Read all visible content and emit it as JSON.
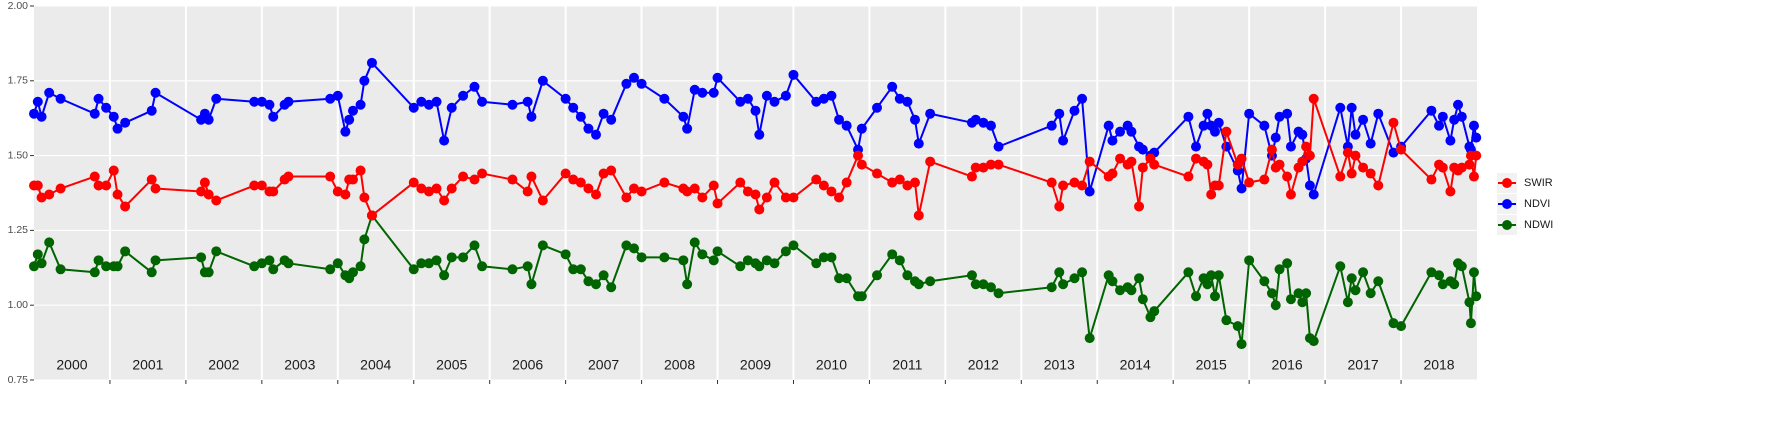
{
  "chart_data": {
    "type": "line",
    "xlim": [
      2000,
      2019
    ],
    "xticks": [
      2001,
      2002,
      2003,
      2004,
      2005,
      2006,
      2007,
      2008,
      2009,
      2010,
      2011,
      2012,
      2013,
      2014,
      2015,
      2016,
      2017,
      2018
    ],
    "year_labels": [
      "2000",
      "2001",
      "2002",
      "2003",
      "2004",
      "2005",
      "2006",
      "2007",
      "2008",
      "2009",
      "2010",
      "2011",
      "2012",
      "2013",
      "2014",
      "2015",
      "2016",
      "2017",
      "2018"
    ],
    "ylim": [
      0.75,
      2.0
    ],
    "yticks": [
      {
        "value": 0.75,
        "label": "0.75"
      },
      {
        "value": 1.0,
        "label": "1.00"
      },
      {
        "value": 1.25,
        "label": "1.25"
      },
      {
        "value": 1.5,
        "label": "1.50"
      },
      {
        "value": 1.75,
        "label": "1.75"
      },
      {
        "value": 2.0,
        "label": "2.00"
      }
    ],
    "grid": true,
    "legend": "right",
    "x": [
      2000.0,
      2000.05,
      2000.1,
      2000.2,
      2000.35,
      2000.8,
      2000.85,
      2000.95,
      2001.05,
      2001.1,
      2001.2,
      2001.55,
      2001.6,
      2002.2,
      2002.25,
      2002.3,
      2002.4,
      2002.9,
      2003.0,
      2003.1,
      2003.15,
      2003.3,
      2003.35,
      2003.9,
      2004.0,
      2004.1,
      2004.15,
      2004.2,
      2004.3,
      2004.35,
      2004.45,
      2005.0,
      2005.1,
      2005.2,
      2005.3,
      2005.4,
      2005.5,
      2005.65,
      2005.8,
      2005.9,
      2006.3,
      2006.5,
      2006.55,
      2006.7,
      2007.0,
      2007.1,
      2007.2,
      2007.3,
      2007.4,
      2007.5,
      2007.6,
      2007.8,
      2007.9,
      2008.0,
      2008.3,
      2008.55,
      2008.6,
      2008.7,
      2008.8,
      2008.95,
      2009.0,
      2009.3,
      2009.4,
      2009.5,
      2009.55,
      2009.65,
      2009.75,
      2009.9,
      2010.0,
      2010.3,
      2010.4,
      2010.5,
      2010.6,
      2010.7,
      2010.85,
      2010.9,
      2011.1,
      2011.3,
      2011.4,
      2011.5,
      2011.6,
      2011.65,
      2011.8,
      2012.35,
      2012.4,
      2012.5,
      2012.6,
      2012.7,
      2013.4,
      2013.5,
      2013.55,
      2013.7,
      2013.8,
      2013.9,
      2014.15,
      2014.2,
      2014.3,
      2014.4,
      2014.45,
      2014.55,
      2014.6,
      2014.7,
      2014.75,
      2015.2,
      2015.3,
      2015.4,
      2015.45,
      2015.5,
      2015.55,
      2015.6,
      2015.7,
      2015.85,
      2015.9,
      2016.0,
      2016.2,
      2016.3,
      2016.35,
      2016.4,
      2016.5,
      2016.55,
      2016.65,
      2016.7,
      2016.75,
      2016.8,
      2016.85,
      2017.2,
      2017.3,
      2017.35,
      2017.4,
      2017.5,
      2017.6,
      2017.7,
      2017.9,
      2018.0,
      2018.4,
      2018.5,
      2018.55,
      2018.65,
      2018.7,
      2018.75,
      2018.8,
      2018.9,
      2018.92,
      2018.96,
      2018.99
    ],
    "series": [
      {
        "name": "SWIR",
        "color": "#ff0000",
        "values": [
          1.4,
          1.4,
          1.36,
          1.37,
          1.39,
          1.43,
          1.4,
          1.4,
          1.45,
          1.37,
          1.33,
          1.42,
          1.39,
          1.38,
          1.41,
          1.37,
          1.35,
          1.4,
          1.4,
          1.38,
          1.38,
          1.42,
          1.43,
          1.43,
          1.38,
          1.37,
          1.42,
          1.42,
          1.45,
          1.36,
          1.3,
          1.41,
          1.39,
          1.38,
          1.39,
          1.35,
          1.39,
          1.43,
          1.42,
          1.44,
          1.42,
          1.38,
          1.43,
          1.35,
          1.44,
          1.42,
          1.41,
          1.39,
          1.37,
          1.44,
          1.45,
          1.36,
          1.39,
          1.38,
          1.41,
          1.39,
          1.38,
          1.39,
          1.36,
          1.4,
          1.34,
          1.41,
          1.38,
          1.37,
          1.32,
          1.36,
          1.41,
          1.36,
          1.36,
          1.42,
          1.4,
          1.38,
          1.36,
          1.41,
          1.5,
          1.47,
          1.44,
          1.41,
          1.42,
          1.4,
          1.41,
          1.3,
          1.48,
          1.43,
          1.46,
          1.46,
          1.47,
          1.47,
          1.41,
          1.33,
          1.4,
          1.41,
          1.4,
          1.48,
          1.43,
          1.44,
          1.49,
          1.47,
          1.48,
          1.33,
          1.46,
          1.49,
          1.47,
          1.43,
          1.49,
          1.48,
          1.47,
          1.37,
          1.4,
          1.4,
          1.58,
          1.47,
          1.49,
          1.41,
          1.42,
          1.52,
          1.46,
          1.47,
          1.43,
          1.37,
          1.46,
          1.48,
          1.53,
          1.5,
          1.69,
          1.43,
          1.51,
          1.44,
          1.5,
          1.46,
          1.44,
          1.4,
          1.61,
          1.52,
          1.42,
          1.47,
          1.46,
          1.38,
          1.46,
          1.45,
          1.46,
          1.47,
          1.5,
          1.43,
          1.5
        ]
      },
      {
        "name": "NDVI",
        "color": "#0000ff",
        "values": [
          1.64,
          1.68,
          1.63,
          1.71,
          1.69,
          1.64,
          1.69,
          1.66,
          1.63,
          1.59,
          1.61,
          1.65,
          1.71,
          1.62,
          1.64,
          1.62,
          1.69,
          1.68,
          1.68,
          1.67,
          1.63,
          1.67,
          1.68,
          1.69,
          1.7,
          1.58,
          1.62,
          1.65,
          1.67,
          1.75,
          1.81,
          1.66,
          1.68,
          1.67,
          1.68,
          1.55,
          1.66,
          1.7,
          1.73,
          1.68,
          1.67,
          1.68,
          1.63,
          1.75,
          1.69,
          1.66,
          1.63,
          1.59,
          1.57,
          1.64,
          1.62,
          1.74,
          1.76,
          1.74,
          1.69,
          1.63,
          1.59,
          1.72,
          1.71,
          1.71,
          1.76,
          1.68,
          1.69,
          1.65,
          1.57,
          1.7,
          1.68,
          1.7,
          1.77,
          1.68,
          1.69,
          1.7,
          1.62,
          1.6,
          1.52,
          1.59,
          1.66,
          1.73,
          1.69,
          1.68,
          1.62,
          1.54,
          1.64,
          1.61,
          1.62,
          1.61,
          1.6,
          1.53,
          1.6,
          1.64,
          1.55,
          1.65,
          1.69,
          1.38,
          1.6,
          1.55,
          1.58,
          1.6,
          1.58,
          1.53,
          1.52,
          1.5,
          1.51,
          1.63,
          1.53,
          1.6,
          1.64,
          1.6,
          1.58,
          1.61,
          1.53,
          1.45,
          1.39,
          1.64,
          1.6,
          1.5,
          1.56,
          1.63,
          1.64,
          1.53,
          1.58,
          1.57,
          1.49,
          1.4,
          1.37,
          1.66,
          1.53,
          1.66,
          1.57,
          1.62,
          1.54,
          1.64,
          1.51,
          1.53,
          1.65,
          1.6,
          1.63,
          1.55,
          1.62,
          1.67,
          1.63,
          1.53,
          1.52,
          1.6,
          1.56
        ]
      },
      {
        "name": "NDWI",
        "color": "#006400",
        "values": [
          1.13,
          1.17,
          1.14,
          1.21,
          1.12,
          1.11,
          1.15,
          1.13,
          1.13,
          1.13,
          1.18,
          1.11,
          1.15,
          1.16,
          1.11,
          1.11,
          1.18,
          1.13,
          1.14,
          1.15,
          1.12,
          1.15,
          1.14,
          1.12,
          1.14,
          1.1,
          1.09,
          1.11,
          1.13,
          1.22,
          1.3,
          1.12,
          1.14,
          1.14,
          1.15,
          1.1,
          1.16,
          1.16,
          1.2,
          1.13,
          1.12,
          1.13,
          1.07,
          1.2,
          1.17,
          1.12,
          1.12,
          1.08,
          1.07,
          1.1,
          1.06,
          1.2,
          1.19,
          1.16,
          1.16,
          1.15,
          1.07,
          1.21,
          1.17,
          1.15,
          1.18,
          1.13,
          1.15,
          1.14,
          1.13,
          1.15,
          1.14,
          1.18,
          1.2,
          1.14,
          1.16,
          1.16,
          1.09,
          1.09,
          1.03,
          1.03,
          1.1,
          1.17,
          1.15,
          1.1,
          1.08,
          1.07,
          1.08,
          1.1,
          1.07,
          1.07,
          1.06,
          1.04,
          1.06,
          1.11,
          1.07,
          1.09,
          1.11,
          0.89,
          1.1,
          1.08,
          1.05,
          1.06,
          1.05,
          1.09,
          1.02,
          0.96,
          0.98,
          1.11,
          1.03,
          1.09,
          1.07,
          1.1,
          1.03,
          1.1,
          0.95,
          0.93,
          0.87,
          1.15,
          1.08,
          1.04,
          1.0,
          1.12,
          1.14,
          1.02,
          1.04,
          1.01,
          1.04,
          0.89,
          0.88,
          1.13,
          1.01,
          1.09,
          1.05,
          1.11,
          1.04,
          1.08,
          0.94,
          0.93,
          1.11,
          1.1,
          1.07,
          1.08,
          1.07,
          1.14,
          1.13,
          1.01,
          0.94,
          1.11,
          1.03
        ]
      }
    ]
  }
}
